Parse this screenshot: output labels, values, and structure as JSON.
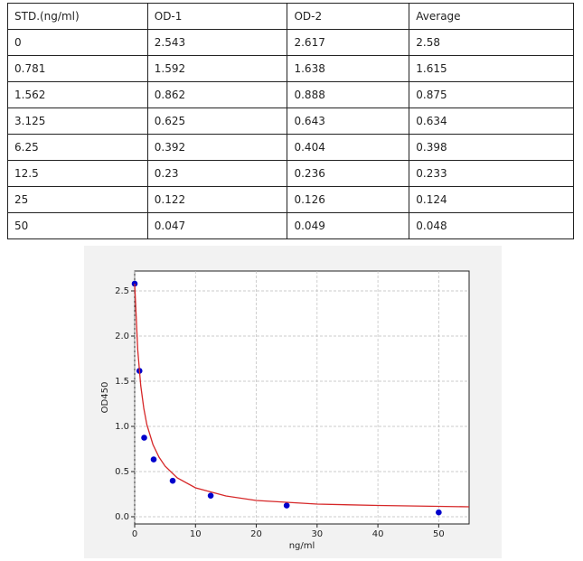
{
  "table": {
    "header": [
      "STD.(ng/ml)",
      "OD-1",
      "OD-2",
      "Average"
    ],
    "rows": [
      [
        "0",
        "2.543",
        "2.617",
        "2.58"
      ],
      [
        "0.781",
        "1.592",
        "1.638",
        "1.615"
      ],
      [
        "1.562",
        "0.862",
        "0.888",
        "0.875"
      ],
      [
        "3.125",
        "0.625",
        "0.643",
        "0.634"
      ],
      [
        "6.25",
        "0.392",
        "0.404",
        "0.398"
      ],
      [
        "12.5",
        "0.23",
        "0.236",
        "0.233"
      ],
      [
        "25",
        "0.122",
        "0.126",
        "0.124"
      ],
      [
        "50",
        "0.047",
        "0.049",
        "0.048"
      ]
    ]
  },
  "chart_data": {
    "type": "scatter",
    "xlabel": "ng/ml",
    "ylabel": "OD450",
    "xlim": [
      0,
      55
    ],
    "ylim": [
      -0.08,
      2.72
    ],
    "xticks": [
      0,
      10,
      20,
      30,
      40,
      50
    ],
    "yticks": [
      {
        "value": 0,
        "label": "0.0"
      },
      {
        "value": 0.5,
        "label": "0.5"
      },
      {
        "value": 1,
        "label": "1.0"
      },
      {
        "value": 1.5,
        "label": "1.5"
      },
      {
        "value": 2,
        "label": "2.0"
      },
      {
        "value": 2.5,
        "label": "2.5"
      }
    ],
    "grid": true,
    "series": [
      {
        "type": "scatter",
        "color": "#0000cc",
        "x": [
          0,
          0.781,
          1.562,
          3.125,
          6.25,
          12.5,
          25,
          50
        ],
        "values": [
          2.58,
          1.615,
          0.875,
          0.634,
          0.398,
          0.233,
          0.124,
          0.048
        ]
      },
      {
        "type": "line",
        "color": "#d62728",
        "x": [
          0,
          0.5,
          1,
          1.5,
          2,
          3,
          4,
          5,
          7,
          10,
          15,
          20,
          30,
          40,
          55
        ],
        "values": [
          2.58,
          1.85,
          1.45,
          1.2,
          1.02,
          0.8,
          0.66,
          0.56,
          0.43,
          0.32,
          0.23,
          0.18,
          0.14,
          0.125,
          0.11
        ]
      }
    ]
  }
}
